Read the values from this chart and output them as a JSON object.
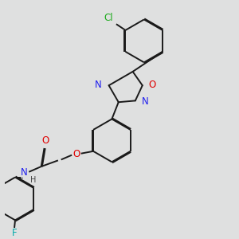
{
  "bg_color": "#dfe0e0",
  "bond_color": "#1a1a1a",
  "atoms": {
    "Cl": {
      "color": "#1aaa1a"
    },
    "O": {
      "color": "#e00000"
    },
    "N": {
      "color": "#2020ee"
    },
    "F": {
      "color": "#00aaaa"
    },
    "H": {
      "color": "#444444"
    }
  },
  "font_size_atom": 8.5,
  "font_size_H": 7.0,
  "line_width": 1.4,
  "double_sep": 0.012
}
